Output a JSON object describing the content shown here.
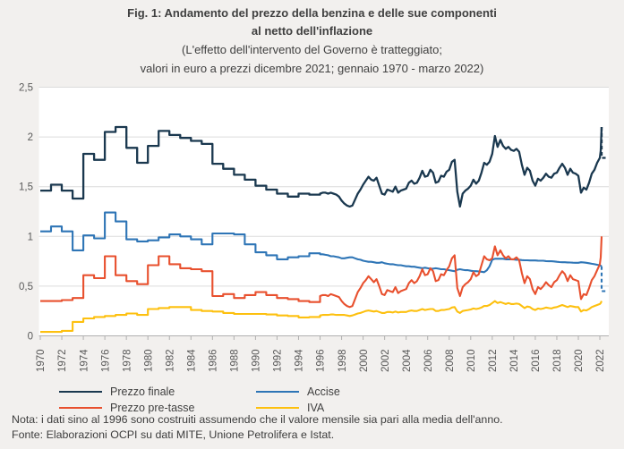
{
  "figure": {
    "title_line1": "Fig. 1: Andamento del prezzo della benzina e delle sue componenti",
    "title_line2": "al netto dell'inflazione",
    "subtitle_line1": "(L'effetto dell'intervento del Governo è tratteggiato;",
    "subtitle_line2": "valori in euro a prezzi dicembre 2021; gennaio 1970 - marzo 2022)",
    "note": "Nota: i dati sino al 1996 sono costruiti assumendo che il valore mensile sia pari alla media dell'anno.",
    "source": "Fonte: Elaborazioni OCPI su dati MITE, Unione Petrolifera e Istat."
  },
  "colors": {
    "background": "#f2f0ee",
    "plot_background": "#ffffff",
    "gridline": "#dcdcdc",
    "axis": "#b0b0b0",
    "tick_label": "#595959",
    "text": "#404040"
  },
  "chart_data": {
    "type": "line",
    "title": "Fig. 1: Andamento del prezzo della benzina e delle sue componenti al netto dell'inflazione",
    "subtitle": "(L'effetto dell'intervento del Governo è tratteggiato; valori in euro a prezzi dicembre 2021; gennaio 1970 - marzo 2022)",
    "xlabel": "",
    "ylabel": "",
    "ylim": [
      0,
      2.5
    ],
    "x_range": [
      1970,
      2023
    ],
    "grid": "horizontal",
    "legend_position": "bottom",
    "x_ticks": [
      1970,
      1972,
      1974,
      1976,
      1978,
      1980,
      1982,
      1984,
      1986,
      1988,
      1990,
      1992,
      1994,
      1996,
      1998,
      2000,
      2002,
      2004,
      2006,
      2008,
      2010,
      2012,
      2014,
      2016,
      2018,
      2020,
      2022
    ],
    "y_ticks": [
      {
        "v": 0,
        "label": "0"
      },
      {
        "v": 0.5,
        "label": "0,5"
      },
      {
        "v": 1,
        "label": "1"
      },
      {
        "v": 1.5,
        "label": "1,5"
      },
      {
        "v": 2,
        "label": "2"
      },
      {
        "v": 2.5,
        "label": "2,5"
      }
    ],
    "draw_order": [
      3,
      2,
      1,
      0
    ],
    "legend_columns": [
      [
        0,
        1
      ],
      [
        2,
        3
      ]
    ],
    "series": [
      {
        "name": "Prezzo finale",
        "slug": "prezzo-finale",
        "color": "#1a384f",
        "width": 2.3,
        "annual_1970_1995": [
          1.46,
          1.52,
          1.46,
          1.38,
          1.83,
          1.77,
          2.05,
          2.1,
          1.89,
          1.74,
          1.91,
          2.06,
          2.02,
          1.99,
          1.96,
          1.93,
          1.73,
          1.68,
          1.62,
          1.57,
          1.51,
          1.47,
          1.43,
          1.4,
          1.43,
          1.42
        ],
        "quarterly_1996_2021": [
          1.43,
          1.44,
          1.44,
          1.43,
          1.44,
          1.43,
          1.42,
          1.4,
          1.36,
          1.33,
          1.31,
          1.3,
          1.31,
          1.37,
          1.43,
          1.47,
          1.52,
          1.56,
          1.6,
          1.57,
          1.56,
          1.59,
          1.51,
          1.43,
          1.42,
          1.47,
          1.46,
          1.45,
          1.5,
          1.44,
          1.46,
          1.47,
          1.48,
          1.54,
          1.56,
          1.53,
          1.54,
          1.59,
          1.66,
          1.6,
          1.61,
          1.67,
          1.64,
          1.54,
          1.55,
          1.61,
          1.6,
          1.65,
          1.67,
          1.75,
          1.77,
          1.45,
          1.3,
          1.43,
          1.46,
          1.48,
          1.51,
          1.57,
          1.53,
          1.56,
          1.64,
          1.74,
          1.72,
          1.75,
          1.83,
          2.01,
          1.9,
          1.97,
          1.91,
          1.88,
          1.9,
          1.87,
          1.86,
          1.88,
          1.85,
          1.72,
          1.62,
          1.69,
          1.66,
          1.56,
          1.51,
          1.58,
          1.56,
          1.59,
          1.63,
          1.6,
          1.59,
          1.63,
          1.64,
          1.69,
          1.73,
          1.69,
          1.62,
          1.68,
          1.64,
          1.63,
          1.61,
          1.44,
          1.49,
          1.47,
          1.54,
          1.63,
          1.67,
          1.74
        ],
        "monthly_2022": [
          1.79,
          1.86,
          2.1
        ],
        "dash_drop": {
          "from": 2.1,
          "to": 1.79
        }
      },
      {
        "name": "Prezzo pre-tasse",
        "slug": "prezzo-pre-tasse",
        "color": "#e8502e",
        "width": 2.1,
        "annual_1970_1995": [
          0.35,
          0.35,
          0.36,
          0.38,
          0.61,
          0.58,
          0.8,
          0.61,
          0.55,
          0.52,
          0.71,
          0.8,
          0.72,
          0.68,
          0.67,
          0.65,
          0.4,
          0.42,
          0.38,
          0.41,
          0.44,
          0.41,
          0.38,
          0.37,
          0.35,
          0.34
        ],
        "quarterly_1996_2021": [
          0.4,
          0.41,
          0.41,
          0.4,
          0.42,
          0.41,
          0.4,
          0.39,
          0.35,
          0.32,
          0.3,
          0.29,
          0.3,
          0.37,
          0.44,
          0.48,
          0.53,
          0.56,
          0.6,
          0.57,
          0.54,
          0.57,
          0.5,
          0.42,
          0.41,
          0.46,
          0.45,
          0.44,
          0.49,
          0.43,
          0.45,
          0.46,
          0.47,
          0.53,
          0.56,
          0.53,
          0.55,
          0.6,
          0.67,
          0.61,
          0.62,
          0.68,
          0.65,
          0.55,
          0.56,
          0.62,
          0.61,
          0.66,
          0.7,
          0.78,
          0.81,
          0.48,
          0.4,
          0.49,
          0.52,
          0.54,
          0.57,
          0.64,
          0.6,
          0.62,
          0.71,
          0.8,
          0.77,
          0.76,
          0.78,
          0.9,
          0.81,
          0.86,
          0.81,
          0.78,
          0.8,
          0.77,
          0.77,
          0.79,
          0.76,
          0.63,
          0.53,
          0.6,
          0.57,
          0.47,
          0.42,
          0.49,
          0.47,
          0.5,
          0.54,
          0.51,
          0.49,
          0.54,
          0.56,
          0.61,
          0.65,
          0.62,
          0.55,
          0.61,
          0.57,
          0.56,
          0.55,
          0.37,
          0.42,
          0.41,
          0.48,
          0.56,
          0.6,
          0.66
        ],
        "monthly_2022": [
          0.72,
          0.79,
          1.0
        ],
        "dash_drop": null
      },
      {
        "name": "Accise",
        "slug": "accise",
        "color": "#2e75b6",
        "width": 2.1,
        "annual_1970_1995": [
          1.05,
          1.1,
          1.05,
          0.86,
          1.01,
          0.98,
          1.24,
          1.15,
          0.97,
          0.95,
          0.96,
          0.99,
          1.02,
          1.0,
          0.97,
          0.92,
          1.03,
          1.03,
          1.02,
          0.92,
          0.84,
          0.81,
          0.77,
          0.79,
          0.8,
          0.83
        ],
        "quarterly_1996_2021": [
          0.82,
          0.82,
          0.815,
          0.81,
          0.8,
          0.8,
          0.795,
          0.79,
          0.78,
          0.78,
          0.785,
          0.79,
          0.79,
          0.78,
          0.77,
          0.765,
          0.755,
          0.75,
          0.745,
          0.745,
          0.74,
          0.735,
          0.735,
          0.74,
          0.73,
          0.725,
          0.72,
          0.72,
          0.715,
          0.71,
          0.71,
          0.705,
          0.7,
          0.7,
          0.695,
          0.695,
          0.69,
          0.685,
          0.68,
          0.685,
          0.68,
          0.675,
          0.675,
          0.68,
          0.675,
          0.67,
          0.67,
          0.665,
          0.66,
          0.655,
          0.65,
          0.665,
          0.67,
          0.665,
          0.66,
          0.66,
          0.655,
          0.65,
          0.65,
          0.648,
          0.645,
          0.64,
          0.66,
          0.7,
          0.765,
          0.775,
          0.775,
          0.775,
          0.775,
          0.77,
          0.77,
          0.77,
          0.768,
          0.765,
          0.765,
          0.762,
          0.76,
          0.76,
          0.758,
          0.758,
          0.758,
          0.756,
          0.755,
          0.755,
          0.752,
          0.75,
          0.75,
          0.748,
          0.745,
          0.742,
          0.74,
          0.74,
          0.738,
          0.737,
          0.736,
          0.735,
          0.735,
          0.74,
          0.738,
          0.735,
          0.73,
          0.725,
          0.72,
          0.715
        ],
        "monthly_2022": [
          0.71,
          0.705,
          0.7
        ],
        "dash_drop": {
          "from": 0.7,
          "to": 0.45
        }
      },
      {
        "name": "IVA",
        "slug": "iva",
        "color": "#fdc00f",
        "width": 2.1,
        "annual_1970_1995": [
          0.04,
          0.04,
          0.05,
          0.14,
          0.175,
          0.19,
          0.2,
          0.21,
          0.225,
          0.21,
          0.27,
          0.28,
          0.29,
          0.29,
          0.26,
          0.25,
          0.245,
          0.23,
          0.22,
          0.22,
          0.22,
          0.215,
          0.205,
          0.2,
          0.185,
          0.19
        ],
        "quarterly_1996_2021": [
          0.205,
          0.21,
          0.21,
          0.21,
          0.215,
          0.215,
          0.21,
          0.21,
          0.21,
          0.21,
          0.205,
          0.2,
          0.205,
          0.215,
          0.225,
          0.23,
          0.24,
          0.25,
          0.255,
          0.25,
          0.245,
          0.25,
          0.24,
          0.23,
          0.23,
          0.24,
          0.24,
          0.235,
          0.245,
          0.235,
          0.24,
          0.24,
          0.24,
          0.25,
          0.255,
          0.25,
          0.25,
          0.26,
          0.27,
          0.26,
          0.265,
          0.27,
          0.27,
          0.25,
          0.25,
          0.26,
          0.26,
          0.265,
          0.27,
          0.285,
          0.29,
          0.245,
          0.23,
          0.25,
          0.255,
          0.26,
          0.265,
          0.275,
          0.27,
          0.275,
          0.285,
          0.3,
          0.3,
          0.31,
          0.33,
          0.35,
          0.33,
          0.34,
          0.33,
          0.32,
          0.33,
          0.32,
          0.32,
          0.325,
          0.32,
          0.3,
          0.28,
          0.295,
          0.29,
          0.27,
          0.26,
          0.275,
          0.27,
          0.275,
          0.285,
          0.28,
          0.275,
          0.285,
          0.29,
          0.3,
          0.31,
          0.3,
          0.29,
          0.3,
          0.295,
          0.29,
          0.29,
          0.245,
          0.26,
          0.255,
          0.27,
          0.29,
          0.3,
          0.31
        ],
        "monthly_2022": [
          0.32,
          0.33,
          0.35
        ],
        "dash_drop": null
      }
    ]
  }
}
